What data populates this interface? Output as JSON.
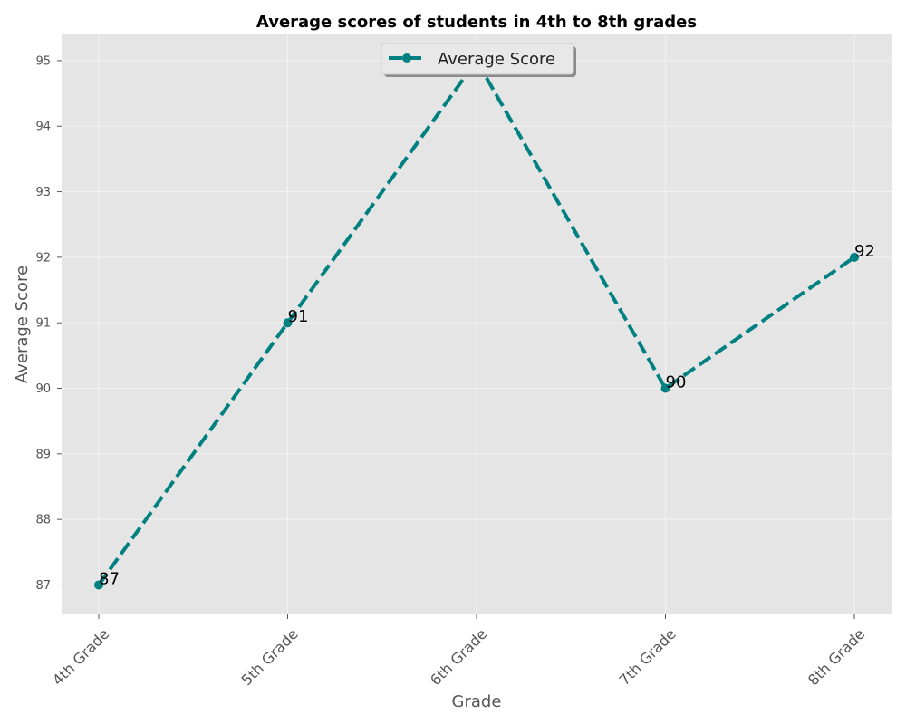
{
  "chart_data": {
    "type": "line",
    "title": "Average scores of students in 4th to 8th grades",
    "xlabel": "Grade",
    "ylabel": "Average Score",
    "categories": [
      "4th Grade",
      "5th Grade",
      "6th Grade",
      "7th Grade",
      "8th Grade"
    ],
    "series": [
      {
        "name": "Average Score",
        "values": [
          87,
          91,
          95,
          90,
          92
        ],
        "data_labels": [
          "87",
          "91",
          "",
          "90",
          "92"
        ],
        "color": "#008080",
        "line_style": "dashed",
        "marker": "circle"
      }
    ],
    "yticks": [
      87,
      88,
      89,
      90,
      91,
      92,
      93,
      94,
      95
    ],
    "ylim": [
      86.55,
      95.4
    ],
    "grid": true,
    "legend_position": "top-center",
    "background_color": "#e5e5e5",
    "grid_color": "#f2f2f2"
  }
}
